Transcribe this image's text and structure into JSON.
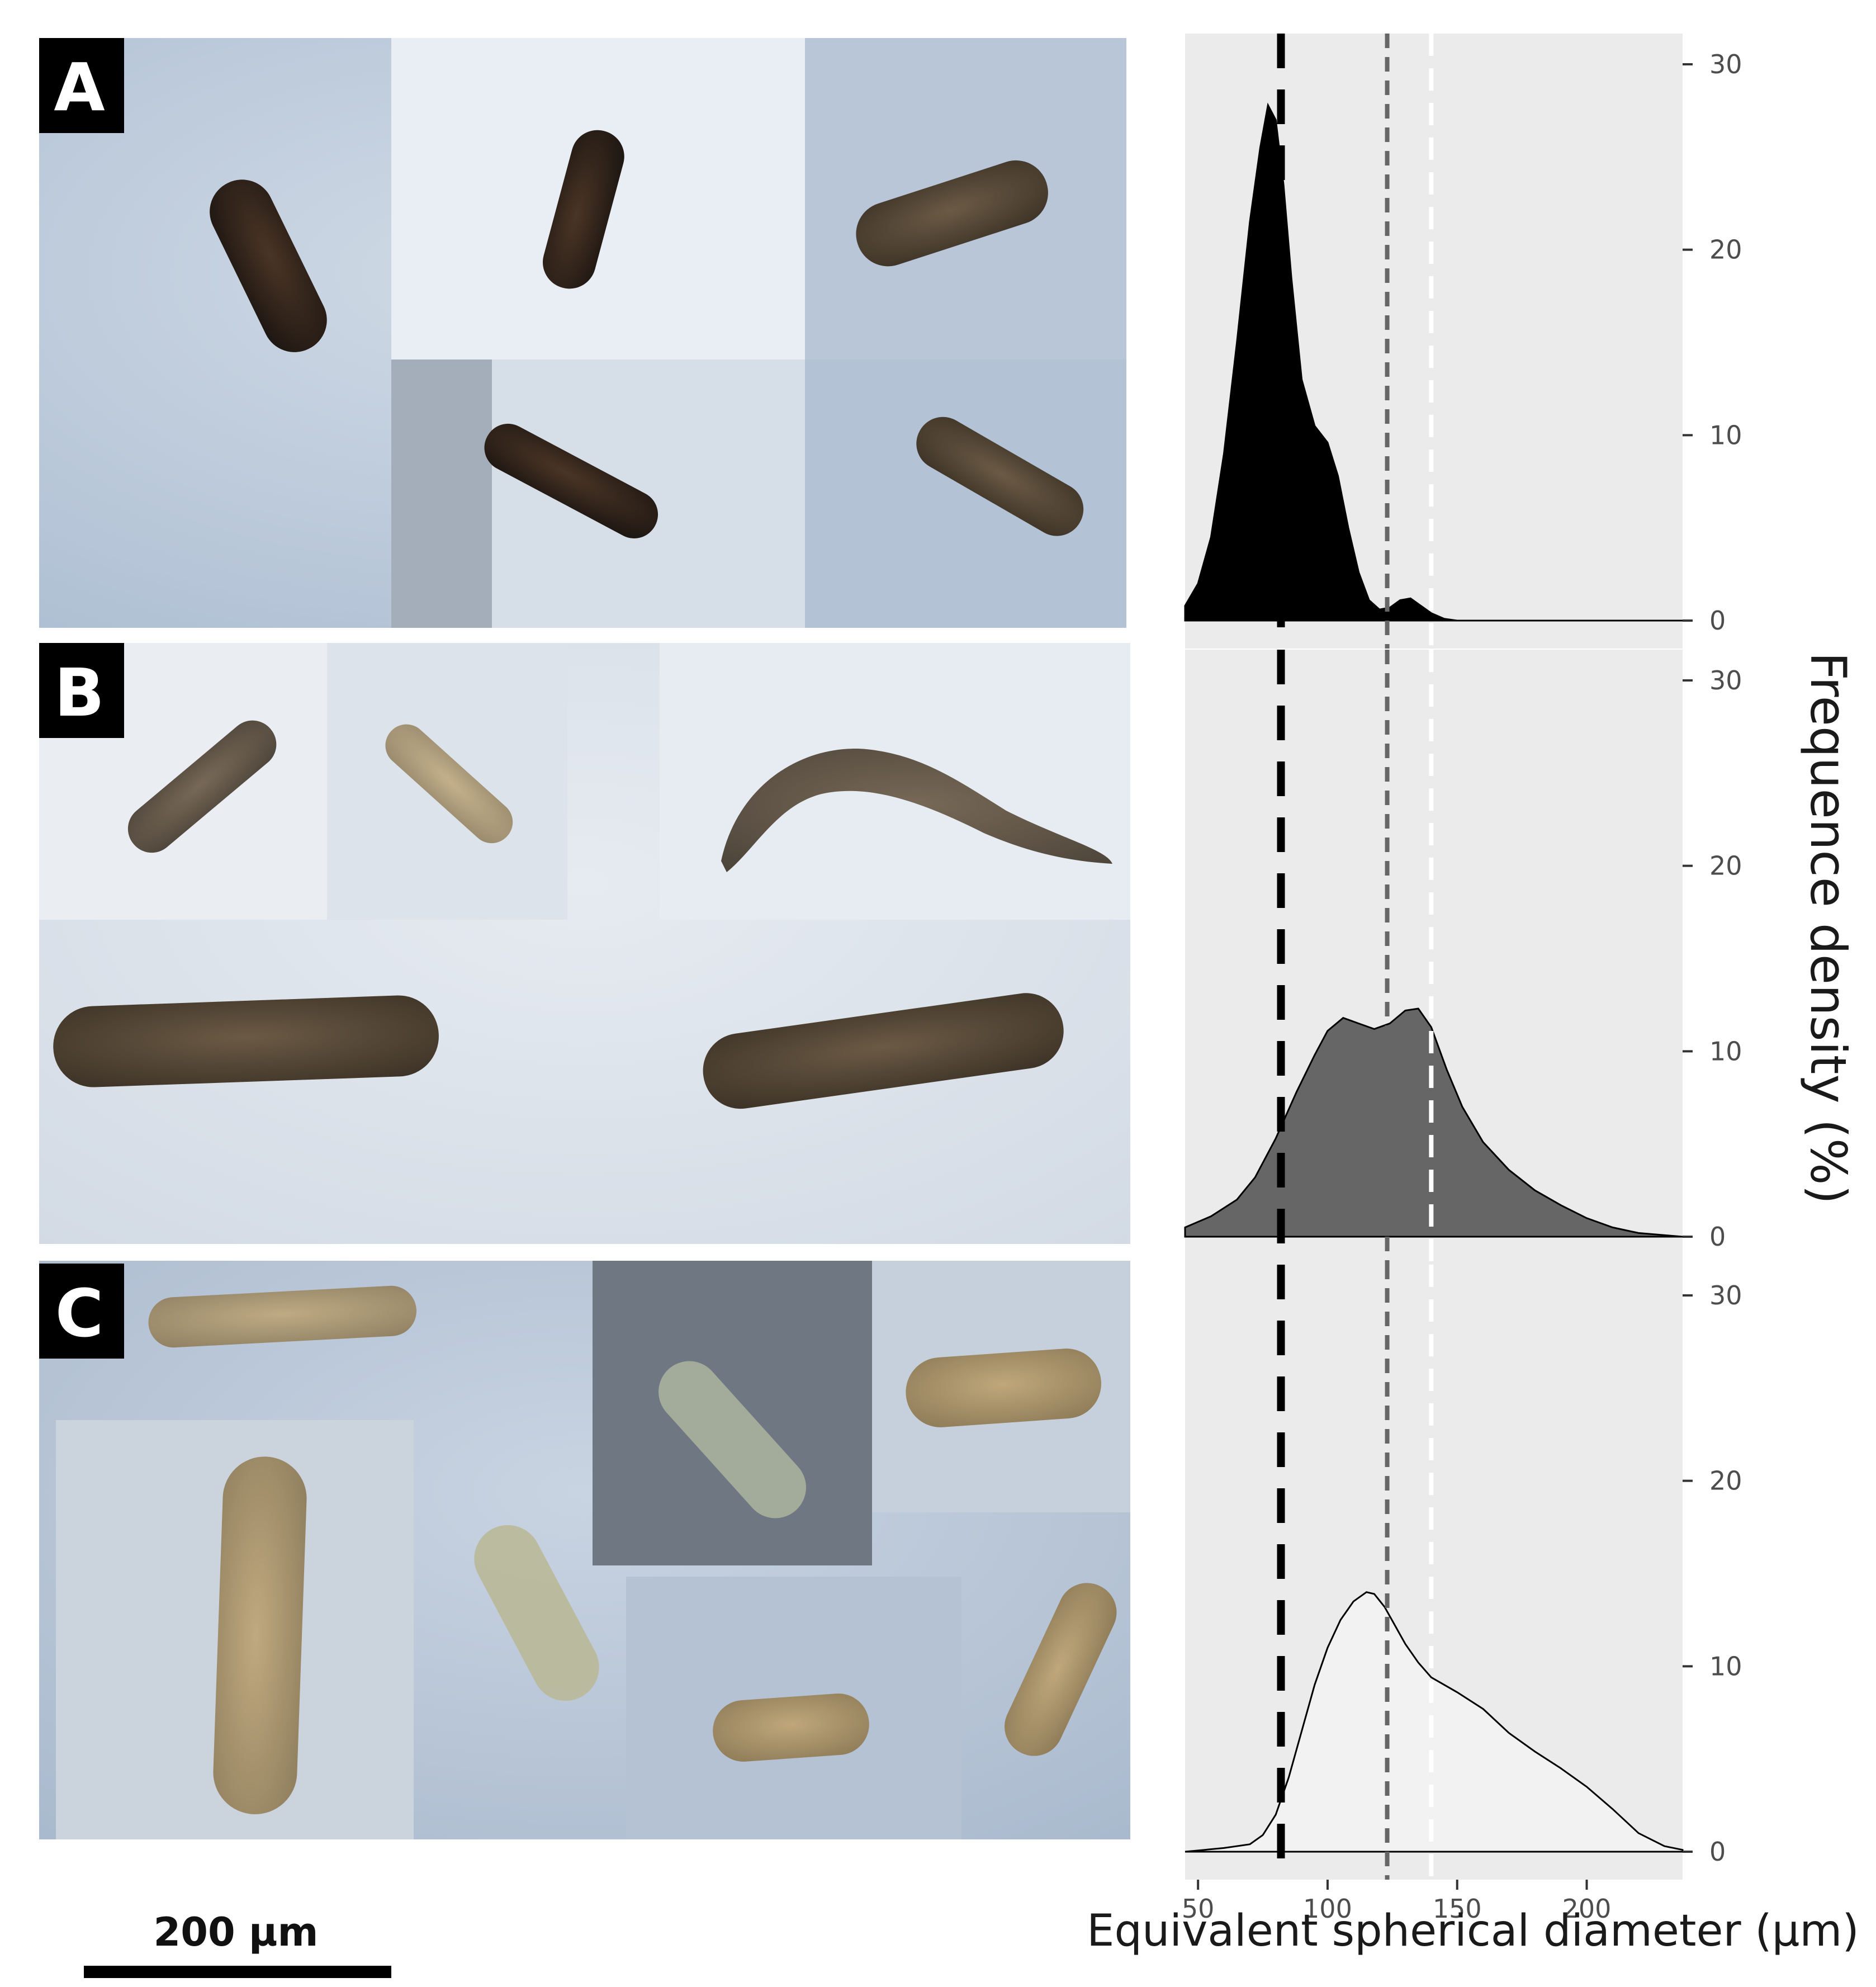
{
  "figure": {
    "panels": [
      {
        "label": "A"
      },
      {
        "label": "B"
      },
      {
        "label": "C"
      }
    ],
    "scale_bar_label": "200 µm"
  },
  "chart_data": {
    "type": "area",
    "title": "",
    "xlabel": "Equivalent spherical diameter (µm)",
    "ylabel": "Frequence density (%)",
    "xlim": [
      45,
      237
    ],
    "ylim": [
      0,
      30
    ],
    "x_ticks": [
      50,
      100,
      150,
      200
    ],
    "y_ticks": [
      0,
      10,
      20,
      30
    ],
    "y_axis_position": "right",
    "background": "#ebebeb",
    "reference_lines": [
      {
        "x": 82,
        "color": "#000000",
        "style": "long-dash"
      },
      {
        "x": 123,
        "color": "#666666",
        "style": "short-dash"
      },
      {
        "x": 140,
        "color": "#ffffff",
        "style": "dash"
      }
    ],
    "facets": [
      {
        "panel": "A",
        "fill": "#000000",
        "x": [
          45,
          50,
          55,
          60,
          65,
          70,
          74,
          77,
          80,
          83,
          86,
          90,
          95,
          100,
          104,
          108,
          112,
          116,
          120,
          124,
          128,
          132,
          136,
          140,
          145,
          150,
          237
        ],
        "y": [
          0.8,
          2.0,
          4.5,
          9.0,
          15.0,
          21.5,
          25.5,
          27.8,
          27.0,
          23.5,
          18.5,
          13.0,
          10.5,
          9.6,
          7.8,
          5.0,
          2.6,
          1.1,
          0.6,
          0.7,
          1.1,
          1.2,
          0.8,
          0.4,
          0.1,
          0.0,
          0.0
        ]
      },
      {
        "panel": "B",
        "fill": "#666666",
        "x": [
          45,
          55,
          65,
          72,
          80,
          88,
          95,
          100,
          106,
          112,
          118,
          124,
          130,
          135,
          140,
          146,
          152,
          160,
          170,
          180,
          190,
          200,
          210,
          220,
          237
        ],
        "y": [
          0.5,
          1.1,
          2.0,
          3.2,
          5.3,
          7.8,
          9.8,
          11.1,
          11.8,
          11.5,
          11.2,
          11.5,
          12.2,
          12.3,
          11.3,
          9.0,
          7.0,
          5.1,
          3.6,
          2.5,
          1.7,
          1.0,
          0.5,
          0.2,
          0.0
        ]
      },
      {
        "panel": "C",
        "fill": "#f2f2f2",
        "x": [
          45,
          60,
          70,
          75,
          80,
          85,
          90,
          95,
          100,
          105,
          110,
          115,
          118,
          122,
          126,
          130,
          135,
          140,
          150,
          160,
          170,
          180,
          190,
          200,
          210,
          220,
          230,
          237
        ],
        "y": [
          0.0,
          0.2,
          0.4,
          0.9,
          2.0,
          4.0,
          6.5,
          9.0,
          11.0,
          12.5,
          13.5,
          14.0,
          13.9,
          13.2,
          12.2,
          11.2,
          10.2,
          9.4,
          8.6,
          7.7,
          6.4,
          5.4,
          4.5,
          3.5,
          2.3,
          1.0,
          0.3,
          0.1
        ]
      }
    ]
  }
}
